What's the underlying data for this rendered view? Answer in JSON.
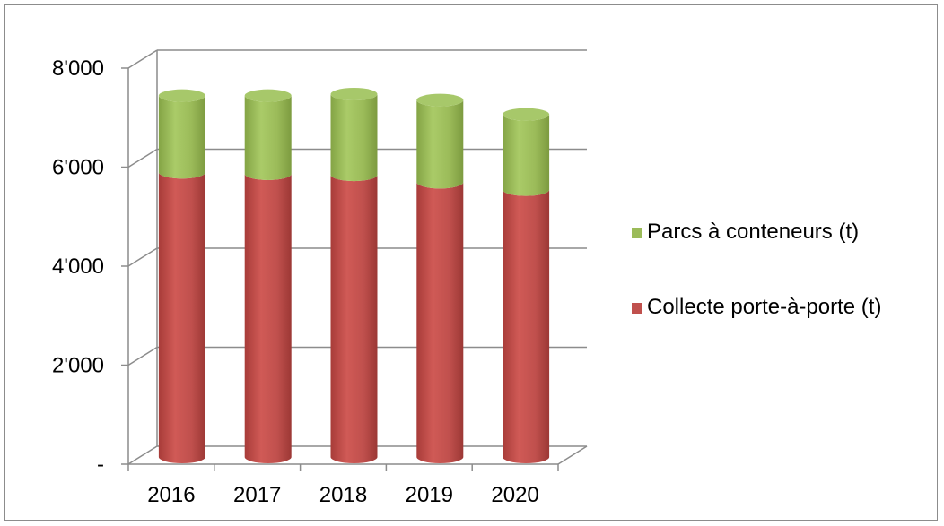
{
  "chart_data": {
    "type": "bar",
    "stacked": true,
    "categories": [
      "2016",
      "2017",
      "2018",
      "2019",
      "2020"
    ],
    "series": [
      {
        "name": "Collecte porte-à-porte (t)",
        "values": [
          5750,
          5720,
          5700,
          5550,
          5400
        ],
        "color": "#c0504d"
      },
      {
        "name": "Parcs à conteneurs (t)",
        "values": [
          1550,
          1580,
          1630,
          1660,
          1520
        ],
        "color": "#9bbb59"
      }
    ],
    "y_ticks": [
      "-",
      "2'000",
      "4'000",
      "6'000",
      "8'000"
    ],
    "y_tick_values": [
      0,
      2000,
      4000,
      6000,
      8000
    ],
    "ylim": [
      0,
      8000
    ],
    "grid": true,
    "legend_position": "right",
    "legend_order": [
      "Parcs à conteneurs (t)",
      "Collecte porte-à-porte (t)"
    ],
    "title": "",
    "xlabel": "",
    "ylabel": ""
  }
}
